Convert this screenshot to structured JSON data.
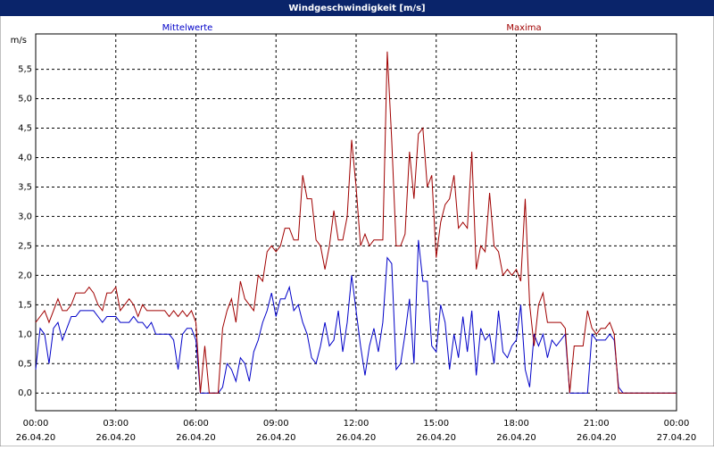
{
  "chart_data": {
    "type": "line",
    "title": "Windgeschwindigkeit [m/s]",
    "y_unit": "m/s",
    "x": [
      0,
      10,
      20,
      30,
      40,
      50,
      60,
      70,
      80,
      90,
      100,
      110,
      120,
      130,
      140,
      150,
      160,
      170,
      180,
      190,
      200,
      210,
      220,
      230,
      240,
      250,
      260,
      270,
      280,
      290,
      300,
      310,
      320,
      330,
      340,
      350,
      360,
      370,
      380,
      390,
      400,
      410,
      420,
      430,
      440,
      450,
      460,
      470,
      480,
      490,
      500,
      510,
      520,
      530,
      540,
      550,
      560,
      570,
      580,
      590,
      600,
      610,
      620,
      630,
      640,
      650,
      660,
      670,
      680,
      690,
      700,
      710,
      720,
      730,
      740,
      750,
      760,
      770,
      780,
      790,
      800,
      810,
      820,
      830,
      840,
      850,
      860,
      870,
      880,
      890,
      900,
      910,
      920,
      930,
      940,
      950,
      960,
      970,
      980,
      990,
      1000,
      1010,
      1020,
      1030,
      1040,
      1050,
      1060,
      1070,
      1080,
      1090,
      1100,
      1110,
      1120,
      1130,
      1140,
      1150,
      1160,
      1170,
      1180,
      1190,
      1200,
      1210,
      1220,
      1230,
      1240,
      1250,
      1260,
      1270,
      1280,
      1290,
      1300,
      1310,
      1320,
      1330,
      1340,
      1350,
      1360,
      1370,
      1380,
      1390,
      1400,
      1410,
      1420,
      1430,
      1440
    ],
    "series": [
      {
        "name": "Mittelwerte",
        "color": "#0000c8",
        "values": [
          0.4,
          1.1,
          1.0,
          0.5,
          1.1,
          1.2,
          0.9,
          1.1,
          1.3,
          1.3,
          1.4,
          1.4,
          1.4,
          1.4,
          1.3,
          1.2,
          1.3,
          1.3,
          1.3,
          1.2,
          1.2,
          1.2,
          1.3,
          1.2,
          1.2,
          1.1,
          1.2,
          1.0,
          1.0,
          1.0,
          1.0,
          0.9,
          0.4,
          1.0,
          1.1,
          1.1,
          0.9,
          0,
          0,
          0,
          0,
          0,
          0.1,
          0.5,
          0.4,
          0.2,
          0.6,
          0.5,
          0.2,
          0.7,
          0.9,
          1.2,
          1.4,
          1.7,
          1.3,
          1.6,
          1.6,
          1.8,
          1.4,
          1.5,
          1.2,
          1.0,
          0.6,
          0.5,
          0.8,
          1.2,
          0.8,
          0.9,
          1.4,
          0.7,
          1.2,
          2.0,
          1.4,
          0.8,
          0.3,
          0.8,
          1.1,
          0.7,
          1.2,
          2.3,
          2.2,
          0.4,
          0.5,
          1.0,
          1.6,
          0.5,
          2.6,
          1.9,
          1.9,
          0.8,
          0.7,
          1.5,
          1.2,
          0.4,
          1.0,
          0.6,
          1.3,
          0.7,
          1.4,
          0.3,
          1.1,
          0.9,
          1.0,
          0.5,
          1.4,
          0.7,
          0.6,
          0.8,
          0.9,
          1.5,
          0.4,
          0.1,
          1.0,
          0.8,
          1.0,
          0.6,
          0.9,
          0.8,
          0.9,
          1.0,
          0,
          0,
          0,
          0,
          0,
          1.0,
          0.9,
          0.9,
          0.9,
          1.0,
          0.9,
          0.1,
          0,
          0,
          0,
          0,
          0,
          0,
          0,
          0,
          0,
          0,
          0,
          0,
          0
        ]
      },
      {
        "name": "Maxima",
        "color": "#a00000",
        "values": [
          1.2,
          1.3,
          1.4,
          1.2,
          1.4,
          1.6,
          1.4,
          1.4,
          1.5,
          1.7,
          1.7,
          1.7,
          1.8,
          1.7,
          1.5,
          1.4,
          1.7,
          1.7,
          1.8,
          1.4,
          1.5,
          1.6,
          1.5,
          1.3,
          1.5,
          1.4,
          1.4,
          1.4,
          1.4,
          1.4,
          1.3,
          1.4,
          1.3,
          1.4,
          1.3,
          1.4,
          1.2,
          0,
          0.8,
          0,
          0,
          0,
          1.1,
          1.4,
          1.6,
          1.2,
          1.9,
          1.6,
          1.5,
          1.4,
          2.0,
          1.9,
          2.4,
          2.5,
          2.4,
          2.5,
          2.8,
          2.8,
          2.6,
          2.6,
          3.7,
          3.3,
          3.3,
          2.6,
          2.5,
          2.1,
          2.5,
          3.1,
          2.6,
          2.6,
          3.0,
          4.3,
          3.5,
          2.5,
          2.7,
          2.5,
          2.6,
          2.6,
          2.6,
          5.8,
          4.3,
          2.5,
          2.5,
          2.7,
          4.1,
          3.3,
          4.4,
          4.5,
          3.5,
          3.7,
          2.3,
          2.9,
          3.2,
          3.3,
          3.7,
          2.8,
          2.9,
          2.8,
          4.1,
          2.1,
          2.5,
          2.4,
          3.4,
          2.5,
          2.4,
          2.0,
          2.1,
          2.0,
          2.1,
          1.9,
          3.3,
          1.5,
          0.8,
          1.5,
          1.7,
          1.2,
          1.2,
          1.2,
          1.2,
          1.1,
          0,
          0.8,
          0.8,
          0.8,
          1.4,
          1.1,
          1.0,
          1.1,
          1.1,
          1.2,
          1.0,
          0,
          0,
          0,
          0,
          0,
          0,
          0,
          0,
          0,
          0,
          0,
          0,
          0,
          0
        ]
      }
    ],
    "xlim": [
      0,
      1440
    ],
    "xticks": [
      {
        "value": 0,
        "label": "00:00",
        "date": "26.04.20"
      },
      {
        "value": 180,
        "label": "03:00",
        "date": "26.04.20"
      },
      {
        "value": 360,
        "label": "06:00",
        "date": "26.04.20"
      },
      {
        "value": 540,
        "label": "09:00",
        "date": "26.04.20"
      },
      {
        "value": 720,
        "label": "12:00",
        "date": "26.04.20"
      },
      {
        "value": 900,
        "label": "15:00",
        "date": "26.04.20"
      },
      {
        "value": 1080,
        "label": "18:00",
        "date": "26.04.20"
      },
      {
        "value": 1260,
        "label": "21:00",
        "date": "26.04.20"
      },
      {
        "value": 1440,
        "label": "00:00",
        "date": "27.04.20"
      }
    ],
    "ylim": [
      -0.3,
      6.1
    ],
    "yticks": [
      {
        "value": 0,
        "label": "0,0"
      },
      {
        "value": 0.5,
        "label": "0,5"
      },
      {
        "value": 1,
        "label": "1,0"
      },
      {
        "value": 1.5,
        "label": "1,5"
      },
      {
        "value": 2,
        "label": "2,0"
      },
      {
        "value": 2.5,
        "label": "2,5"
      },
      {
        "value": 3,
        "label": "3,0"
      },
      {
        "value": 3.5,
        "label": "3,5"
      },
      {
        "value": 4,
        "label": "4,0"
      },
      {
        "value": 4.5,
        "label": "4,5"
      },
      {
        "value": 5,
        "label": "5,0"
      },
      {
        "value": 5.5,
        "label": "5,5"
      }
    ],
    "grid": true
  }
}
